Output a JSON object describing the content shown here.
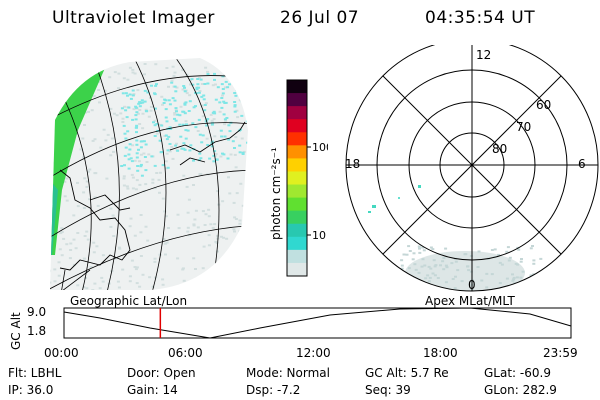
{
  "header": {
    "instrument": "Ultraviolet Imager",
    "date": "26 Jul 07",
    "time": "04:35:54 UT"
  },
  "colorbar": {
    "unit_label": "photon cm⁻²s⁻¹",
    "ticks": [
      "100",
      "10"
    ],
    "colors": [
      "#e0e8e8",
      "#c0e0e0",
      "#30d8d0",
      "#28c8b0",
      "#38d060",
      "#60e030",
      "#a0e830",
      "#e0f020",
      "#ffd000",
      "#ff9000",
      "#ff3000",
      "#e00020",
      "#a00040",
      "#500040",
      "#100010"
    ]
  },
  "left_map": {
    "caption": "Geographic Lat/Lon"
  },
  "polar_map": {
    "caption": "Apex MLat/MLT",
    "mlt_labels": {
      "top": "12",
      "left": "18",
      "right": "6",
      "bottom": "0"
    },
    "lat_labels": [
      "60",
      "70",
      "80"
    ]
  },
  "altitude_strip": {
    "axis_label": "GC Alt",
    "y_ticks": [
      "9.0",
      "1.8"
    ],
    "x_ticks": [
      "00:00",
      "06:00",
      "12:00",
      "18:00",
      "23:59"
    ],
    "current_time_fraction": 0.19
  },
  "status": {
    "filter": "Flt: LBHL",
    "ip": "IP: 36.0",
    "door": "Door: Open",
    "gain": "Gain: 14",
    "mode": "Mode: Normal",
    "dsp": "Dsp:    -7.2",
    "gc_alt": "GC Alt: 5.7 Re",
    "seq": "Seq: 39",
    "glat": "GLat: -60.9",
    "glon": "GLon: 282.9"
  }
}
